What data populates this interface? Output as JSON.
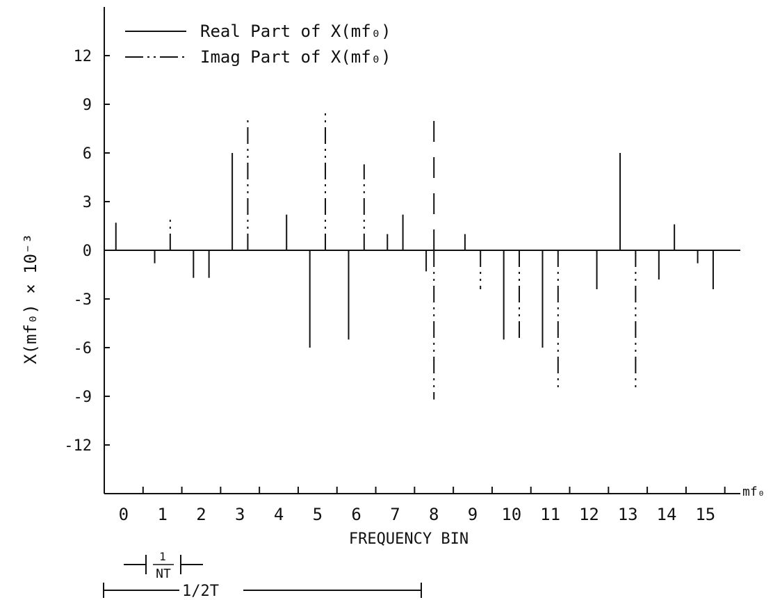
{
  "chart_data": {
    "type": "bar",
    "title": "",
    "xlabel": "FREQUENCY BIN",
    "ylabel": "X(mf₀) × 10⁻³",
    "x_axis_end_label": "mf₀",
    "xlim": [
      -0.5,
      15.9
    ],
    "ylim": [
      -15,
      15
    ],
    "x_ticks": [
      "0",
      "1",
      "2",
      "3",
      "4",
      "5",
      "6",
      "7",
      "8",
      "9",
      "10",
      "11",
      "12",
      "13",
      "14",
      "15"
    ],
    "y_ticks": [
      "12",
      "9",
      "6",
      "3",
      "0",
      "-3",
      "-6",
      "-9",
      "-12"
    ],
    "y_tick_values": [
      12,
      9,
      6,
      3,
      0,
      -3,
      -6,
      -9,
      -12
    ],
    "legend_position": "top-left",
    "series": [
      {
        "name": "Real Part of X(mf₀)",
        "style": "solid",
        "x": [
          -0.2,
          0.8,
          1.8,
          2.2,
          2.8,
          4.2,
          4.8,
          5.8,
          6.8,
          7.2,
          7.8,
          8.8,
          9.8,
          10.8,
          12.2,
          12.8,
          13.8,
          14.2,
          15.2
        ],
        "values": [
          1.7,
          -0.8,
          -1.7,
          -1.7,
          6.0,
          2.2,
          -6.0,
          -5.5,
          1.0,
          2.2,
          -1.3,
          1.0,
          -5.5,
          -6.0,
          -2.4,
          6.0,
          -1.8,
          1.6,
          -2.4
        ]
      },
      {
        "name": "Imag Part of X(mf₀)",
        "style": "dash-dot-dot",
        "x": [
          0.2,
          1.2,
          3.2,
          5.2,
          6.2,
          8.0,
          9.2,
          10.2,
          11.2,
          13.2,
          14.8
        ],
        "values": [
          0.0,
          2.1,
          8.3,
          8.5,
          5.3,
          -9.2,
          -2.4,
          -5.6,
          -8.5,
          -8.5,
          -0.8
        ]
      },
      {
        "name": "",
        "style": "long-dash",
        "x": [
          8.0
        ],
        "values": [
          8.7
        ]
      }
    ]
  },
  "annotations": {
    "bin_width_label": "1",
    "bin_width_denominator": "NT",
    "half_span_label": "1/2T"
  }
}
